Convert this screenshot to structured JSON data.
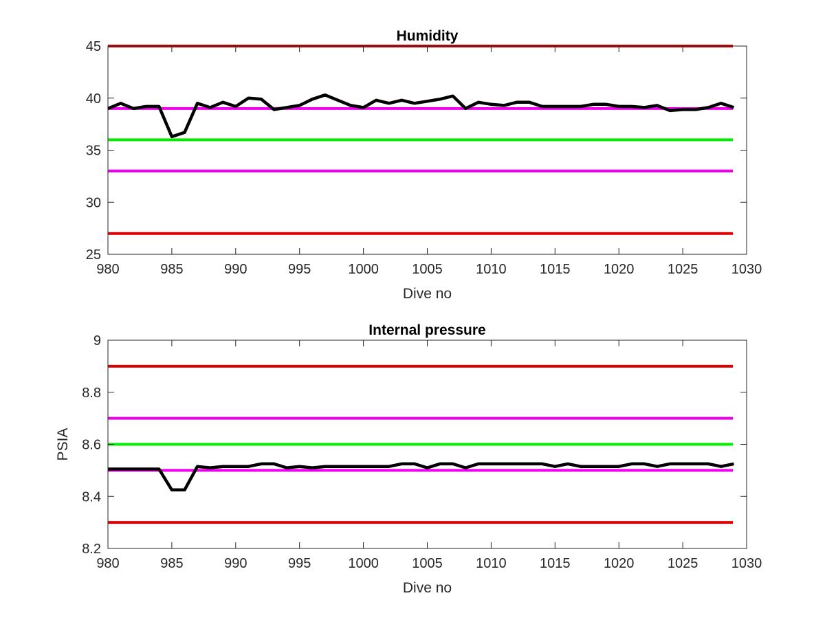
{
  "chart_data": [
    {
      "type": "line",
      "title": "Humidity",
      "xlabel": "Dive no",
      "ylabel": "",
      "xlim": [
        980,
        1030
      ],
      "ylim": [
        25,
        45
      ],
      "xticks": [
        980,
        985,
        990,
        995,
        1000,
        1005,
        1010,
        1015,
        1020,
        1025,
        1030
      ],
      "yticks": [
        25,
        30,
        35,
        40,
        45
      ],
      "x_tick_labels": [
        "980",
        "985",
        "990",
        "995",
        "1000",
        "1005",
        "1010",
        "1015",
        "1020",
        "1025",
        "1030"
      ],
      "y_tick_labels": [
        "25",
        "30",
        "35",
        "40",
        "45"
      ],
      "grid": false,
      "reference_lines": [
        {
          "y": 45,
          "color": "#dd0000"
        },
        {
          "y": 39,
          "color": "#ee00ee"
        },
        {
          "y": 36,
          "color": "#00ee00"
        },
        {
          "y": 33,
          "color": "#ee00ee"
        },
        {
          "y": 27,
          "color": "#dd0000"
        }
      ],
      "series": [
        {
          "color": "#000000",
          "x": [
            980,
            981,
            982,
            983,
            984,
            985,
            986,
            987,
            988,
            989,
            990,
            991,
            992,
            993,
            994,
            995,
            996,
            997,
            998,
            999,
            1000,
            1001,
            1002,
            1003,
            1004,
            1005,
            1006,
            1007,
            1008,
            1009,
            1010,
            1011,
            1012,
            1013,
            1014,
            1015,
            1016,
            1017,
            1018,
            1019,
            1020,
            1021,
            1022,
            1023,
            1024,
            1025,
            1026,
            1027,
            1028,
            1029
          ],
          "y": [
            39.0,
            39.5,
            39.0,
            39.2,
            39.2,
            36.3,
            36.7,
            39.5,
            39.1,
            39.6,
            39.2,
            40.0,
            39.9,
            38.9,
            39.1,
            39.3,
            39.9,
            40.3,
            39.8,
            39.3,
            39.1,
            39.8,
            39.5,
            39.8,
            39.5,
            39.7,
            39.9,
            40.2,
            39.0,
            39.6,
            39.4,
            39.3,
            39.6,
            39.6,
            39.2,
            39.2,
            39.2,
            39.2,
            39.4,
            39.4,
            39.2,
            39.2,
            39.1,
            39.3,
            38.8,
            38.9,
            38.9,
            39.1,
            39.5,
            39.1
          ]
        }
      ]
    },
    {
      "type": "line",
      "title": "Internal pressure",
      "xlabel": "Dive no",
      "ylabel": "PSIA",
      "xlim": [
        980,
        1030
      ],
      "ylim": [
        8.2,
        9
      ],
      "xticks": [
        980,
        985,
        990,
        995,
        1000,
        1005,
        1010,
        1015,
        1020,
        1025,
        1030
      ],
      "yticks": [
        8.2,
        8.4,
        8.6,
        8.8,
        9
      ],
      "x_tick_labels": [
        "980",
        "985",
        "990",
        "995",
        "1000",
        "1005",
        "1010",
        "1015",
        "1020",
        "1025",
        "1030"
      ],
      "y_tick_labels": [
        "8.2",
        "8.4",
        "8.6",
        "8.8",
        "9"
      ],
      "grid": false,
      "reference_lines": [
        {
          "y": 8.9,
          "color": "#dd0000"
        },
        {
          "y": 8.7,
          "color": "#ee00ee"
        },
        {
          "y": 8.6,
          "color": "#00ee00"
        },
        {
          "y": 8.5,
          "color": "#ee00ee"
        },
        {
          "y": 8.3,
          "color": "#dd0000"
        }
      ],
      "series": [
        {
          "color": "#000000",
          "x": [
            980,
            981,
            982,
            983,
            984,
            985,
            986,
            987,
            988,
            989,
            990,
            991,
            992,
            993,
            994,
            995,
            996,
            997,
            998,
            999,
            1000,
            1001,
            1002,
            1003,
            1004,
            1005,
            1006,
            1007,
            1008,
            1009,
            1010,
            1011,
            1012,
            1013,
            1014,
            1015,
            1016,
            1017,
            1018,
            1019,
            1020,
            1021,
            1022,
            1023,
            1024,
            1025,
            1026,
            1027,
            1028,
            1029
          ],
          "y": [
            8.505,
            8.505,
            8.505,
            8.505,
            8.505,
            8.425,
            8.425,
            8.515,
            8.51,
            8.515,
            8.515,
            8.515,
            8.525,
            8.525,
            8.51,
            8.515,
            8.51,
            8.515,
            8.515,
            8.515,
            8.515,
            8.515,
            8.515,
            8.525,
            8.525,
            8.51,
            8.525,
            8.525,
            8.51,
            8.525,
            8.525,
            8.525,
            8.525,
            8.525,
            8.525,
            8.515,
            8.525,
            8.515,
            8.515,
            8.515,
            8.515,
            8.525,
            8.525,
            8.515,
            8.525,
            8.525,
            8.525,
            8.525,
            8.515,
            8.525
          ]
        }
      ]
    }
  ]
}
